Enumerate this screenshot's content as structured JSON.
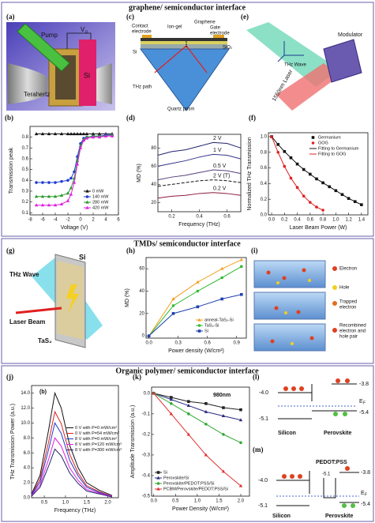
{
  "sections": [
    {
      "title": "graphene/ semiconductor interface"
    },
    {
      "title": "TMDs/ semiconductor interface"
    },
    {
      "title": "Organic polymer/ semiconductor interface"
    }
  ],
  "panel_labels": [
    "(a)",
    "(b)",
    "(c)",
    "(d)",
    "(e)",
    "(f)",
    "(g)",
    "(h)",
    "(i)",
    "(j)",
    "(k)",
    "(l)",
    "(m)"
  ],
  "diagrams": {
    "a": {
      "pump": "Pump",
      "terahertz": "Terahertz",
      "si": "Si",
      "voltage": "V",
      "voltage_sub": "g"
    },
    "c": {
      "contact": [
        "Contact",
        "electrode"
      ],
      "ion_gel": "Ion-gel",
      "graphene": "Graphene",
      "gate": [
        "Gate",
        "electrode"
      ],
      "sio2": "SiO₂",
      "si": "Si",
      "thz_path": "THz path",
      "prism": "Quartz prism"
    },
    "e": {
      "modulator": "Modulator",
      "thz_wave": "THz Wave",
      "laser": "1550nm Laser"
    },
    "g": {
      "thz_wave": "THz Wave",
      "si": "Si",
      "laser": "Laser Beam",
      "tas2": "TaS₂"
    },
    "i": {
      "legend": [
        "Electron",
        "Hole",
        "Trapped",
        "electron",
        "Recombined",
        "electron and",
        "hole pair"
      ]
    },
    "l": {
      "levels": [
        "-4.0",
        "-3.8",
        "-5.1",
        "-5.4"
      ],
      "ef": "E",
      "ef_sub": "F",
      "left": "Silicon",
      "right": "Perovskite"
    },
    "m": {
      "levels": [
        "-4.0",
        "-3.8",
        "-5.1",
        "-5.1",
        "-5.4"
      ],
      "ef": "E",
      "ef_sub": "F",
      "left": "Silicon",
      "right": "Perovskite",
      "middle": "PEDOT:PSS"
    }
  },
  "chart_data": [
    {
      "type": "line",
      "xlabel": "Voltage (V)",
      "ylabel": "Transmission peak",
      "legend": "lower right",
      "x": [
        -7,
        -6,
        -5,
        -4,
        -3,
        -2,
        -1.5,
        -1,
        -0.5,
        0,
        0.5,
        1,
        2,
        3,
        4,
        5
      ],
      "xlim": [
        -8,
        6
      ],
      "xticks": [
        -8,
        -6,
        -4,
        -2,
        0,
        2,
        4,
        6
      ],
      "ylim": [
        0.08,
        0.9
      ],
      "yticks": [
        0.1,
        0.2,
        0.3,
        0.4,
        0.5,
        0.6,
        0.7,
        0.8
      ],
      "series": [
        {
          "name": "0 mW",
          "color": "#111111",
          "marker": "triangle",
          "values": [
            0.83,
            0.83,
            0.83,
            0.83,
            0.83,
            0.83,
            0.83,
            0.83,
            0.83,
            0.83,
            0.83,
            0.83,
            0.83,
            0.83,
            0.83,
            0.83
          ]
        },
        {
          "name": "140 mW",
          "color": "#1f3fd1",
          "marker": "circle",
          "values": [
            0.38,
            0.38,
            0.38,
            0.38,
            0.39,
            0.4,
            0.42,
            0.48,
            0.62,
            0.74,
            0.79,
            0.8,
            0.81,
            0.81,
            0.82,
            0.82
          ]
        },
        {
          "name": "280 mW",
          "color": "#2a9a2a",
          "marker": "triangle",
          "values": [
            0.25,
            0.25,
            0.25,
            0.25,
            0.26,
            0.28,
            0.33,
            0.42,
            0.58,
            0.72,
            0.78,
            0.8,
            0.81,
            0.81,
            0.81,
            0.82
          ]
        },
        {
          "name": "420 mW",
          "color": "#e020e0",
          "marker": "triangle",
          "values": [
            0.17,
            0.17,
            0.17,
            0.17,
            0.18,
            0.21,
            0.27,
            0.38,
            0.55,
            0.7,
            0.77,
            0.79,
            0.8,
            0.8,
            0.81,
            0.81
          ]
        }
      ]
    },
    {
      "type": "line",
      "xlabel": "Frequency (THz)",
      "ylabel": "MD (%)",
      "legend": "inline",
      "x": [
        0.1,
        0.2,
        0.3,
        0.4,
        0.5,
        0.6,
        0.7
      ],
      "xlim": [
        0.1,
        0.7
      ],
      "xticks": [
        0.2,
        0.4,
        0.6
      ],
      "ylim": [
        10,
        95
      ],
      "yticks": [
        20,
        40,
        60,
        80
      ],
      "series": [
        {
          "name": "2 V",
          "color": "#23236e",
          "values": [
            72,
            76,
            78,
            82,
            86,
            85,
            80
          ]
        },
        {
          "name": "1 V",
          "color": "#34348a",
          "values": [
            60,
            63,
            66,
            70,
            73,
            72,
            68
          ]
        },
        {
          "name": "0.5 V",
          "color": "#55407a",
          "values": [
            45,
            48,
            50,
            53,
            56,
            55,
            52
          ]
        },
        {
          "name": "2 V (T)",
          "color": "#111111",
          "dash": true,
          "values": [
            38,
            40,
            42,
            44,
            45,
            44,
            42
          ]
        },
        {
          "name": "0.2 V",
          "color": "#8b1a3a",
          "values": [
            25,
            27,
            28,
            30,
            31,
            30,
            28
          ]
        }
      ]
    },
    {
      "type": "line",
      "xlabel": "Laser Beam Power (W)",
      "ylabel": "Normalized THz Transmission",
      "legend": "upper right",
      "xlim": [
        -0.05,
        1.5
      ],
      "xticks": [
        {
          "value": 0,
          "label": "0.0"
        },
        0.2,
        0.4,
        0.6,
        0.8,
        {
          "value": 1,
          "label": "1.0"
        },
        1.2,
        1.4
      ],
      "ylim": [
        0,
        1.05
      ],
      "yticks": [
        {
          "value": 0,
          "label": "0.0"
        },
        0.2,
        0.4,
        0.6,
        0.8,
        {
          "value": 1,
          "label": "1.0"
        }
      ],
      "series": [
        {
          "name": "Germanium",
          "color": "#111111",
          "marker": "square",
          "line": false,
          "x": [
            0,
            0.1,
            0.2,
            0.3,
            0.4,
            0.5,
            0.6,
            0.7,
            0.8,
            0.9,
            1,
            1.1,
            1.2,
            1.3,
            1.4
          ],
          "values": [
            1,
            0.9,
            0.81,
            0.73,
            0.65,
            0.58,
            0.52,
            0.46,
            0.41,
            0.36,
            0.31,
            0.26,
            0.21,
            0.17,
            0.13
          ]
        },
        {
          "name": "GOG",
          "color": "#e02020",
          "marker": "circle",
          "line": false,
          "x": [
            0,
            0.1,
            0.2,
            0.3,
            0.4,
            0.5,
            0.6,
            0.7,
            0.8
          ],
          "values": [
            1,
            0.8,
            0.62,
            0.47,
            0.35,
            0.24,
            0.16,
            0.1,
            0.06
          ]
        },
        {
          "name": "Fitting to Germanium",
          "color": "#111111",
          "x": [
            0,
            0.1,
            0.2,
            0.3,
            0.4,
            0.5,
            0.6,
            0.7,
            0.8,
            0.9,
            1,
            1.1,
            1.2,
            1.3,
            1.4
          ],
          "values": [
            1,
            0.9,
            0.81,
            0.73,
            0.65,
            0.58,
            0.52,
            0.46,
            0.41,
            0.36,
            0.31,
            0.26,
            0.21,
            0.17,
            0.13
          ]
        },
        {
          "name": "Fitting to GOG",
          "color": "#e02020",
          "x": [
            0,
            0.1,
            0.2,
            0.3,
            0.4,
            0.5,
            0.6,
            0.7,
            0.8
          ],
          "values": [
            1,
            0.8,
            0.62,
            0.47,
            0.35,
            0.24,
            0.16,
            0.1,
            0.06
          ]
        }
      ]
    },
    {
      "type": "line",
      "xlabel": "Power density (W/cm²)",
      "ylabel": "MD (%)",
      "legend": "lower right",
      "x": [
        0,
        0.25,
        0.5,
        0.75,
        0.95
      ],
      "xlim": [
        -0.03,
        1.0
      ],
      "xticks": [
        {
          "value": 0,
          "label": "0.0"
        },
        0.3,
        0.6,
        0.9
      ],
      "ylim": [
        -2,
        70
      ],
      "yticks": [
        0,
        20,
        40,
        60
      ],
      "series": [
        {
          "name": "anneal-TaS₂-Si",
          "color": "#f5a020",
          "marker": "triangle",
          "values": [
            0,
            33,
            48,
            60,
            68
          ]
        },
        {
          "name": "TaS₂-Si",
          "color": "#33bb33",
          "marker": "circle",
          "values": [
            0,
            27,
            40,
            52,
            62
          ]
        },
        {
          "name": "Si",
          "color": "#2040b0",
          "marker": "square",
          "values": [
            0,
            20,
            26,
            33,
            37
          ]
        }
      ]
    },
    {
      "type": "line",
      "xlabel": "Frequency (THz)",
      "ylabel": "THz Transmission Power (a.u.)",
      "legend": "right",
      "annotations": [
        "(b)"
      ],
      "x": [
        0.2,
        0.4,
        0.6,
        0.75,
        0.9,
        1.1,
        1.3,
        1.5,
        1.8,
        2.1
      ],
      "xlim": [
        0.2,
        2.25
      ],
      "xticks": [
        0.5,
        {
          "value": 1,
          "label": "1.0"
        },
        1.5,
        {
          "value": 2,
          "label": "2.0"
        }
      ],
      "ylim": [
        0,
        15
      ],
      "yticks": [
        {
          "value": 0,
          "label": "0.0"
        },
        {
          "value": 2,
          "label": "2.0"
        },
        {
          "value": 4,
          "label": "4.0"
        },
        {
          "value": 6,
          "label": "6.0"
        },
        {
          "value": 8,
          "label": "8.0"
        },
        {
          "value": 10,
          "label": "10.0"
        },
        {
          "value": 12,
          "label": "12.0"
        },
        {
          "value": 14,
          "label": "14.0"
        }
      ],
      "series": [
        {
          "name": "0 V with P=0 mW/cm²",
          "color": "#111111",
          "values": [
            0.5,
            3,
            9,
            14,
            12,
            7,
            4,
            2,
            1,
            0.3
          ]
        },
        {
          "name": "0 V with P=54 mW/cm²",
          "color": "#e02020",
          "values": [
            0.4,
            2.5,
            7.4,
            11.5,
            9.9,
            5.8,
            3.3,
            1.6,
            0.8,
            0.2
          ]
        },
        {
          "name": "8 V with P=0 mW/cm²",
          "color": "#1f3fd1",
          "values": [
            0.4,
            2.1,
            6.4,
            10,
            8.6,
            5,
            2.9,
            1.4,
            0.7,
            0.2
          ]
        },
        {
          "name": "8 V with P=120 mW/cm²",
          "color": "#e020e0",
          "values": [
            0.3,
            1.7,
            5.1,
            8,
            6.9,
            4,
            2.3,
            1.1,
            0.6,
            0.2
          ]
        },
        {
          "name": "8 V with P=300 mW/cm²",
          "color": "#22226e",
          "values": [
            0.2,
            1.4,
            4.2,
            6.5,
            5.6,
            3.3,
            1.9,
            0.9,
            0.5,
            0.1
          ]
        }
      ]
    },
    {
      "type": "line",
      "xlabel": "Power Density (W/cm²)",
      "ylabel": "Amplitude Transmission (a.u.)",
      "legend": "lower left",
      "annotations": [
        "980nm"
      ],
      "x": [
        0,
        0.4,
        0.8,
        1.2,
        1.6,
        2.0
      ],
      "xlim": [
        -0.05,
        2.2
      ],
      "xticks": [
        {
          "value": 0,
          "label": "0.0"
        },
        0.5,
        {
          "value": 1,
          "label": "1.0"
        },
        1.5,
        {
          "value": 2,
          "label": "2.0"
        }
      ],
      "ylim": [
        -0.5,
        0.03
      ],
      "yticks": [
        {
          "value": 0,
          "label": "0.0"
        },
        -0.1,
        -0.2,
        -0.3,
        -0.4,
        -0.5
      ],
      "series": [
        {
          "name": "Si",
          "color": "#222222",
          "marker": "square",
          "values": [
            0,
            -0.02,
            -0.04,
            -0.05,
            -0.07,
            -0.08
          ]
        },
        {
          "name": "Perovskite/Si",
          "color": "#2a2a80",
          "marker": "triangle",
          "values": [
            0,
            -0.03,
            -0.06,
            -0.09,
            -0.11,
            -0.13
          ]
        },
        {
          "name": "Perovskite/PEDOT:PSS/Si",
          "color": "#33aa33",
          "marker": "circle",
          "values": [
            0,
            -0.05,
            -0.1,
            -0.15,
            -0.2,
            -0.24
          ]
        },
        {
          "name": "PCBM/Perovskite/PEDOT:PSS/Si",
          "color": "#e03030",
          "marker": "triangle",
          "values": [
            0,
            -0.1,
            -0.2,
            -0.3,
            -0.38,
            -0.45
          ]
        }
      ]
    }
  ]
}
